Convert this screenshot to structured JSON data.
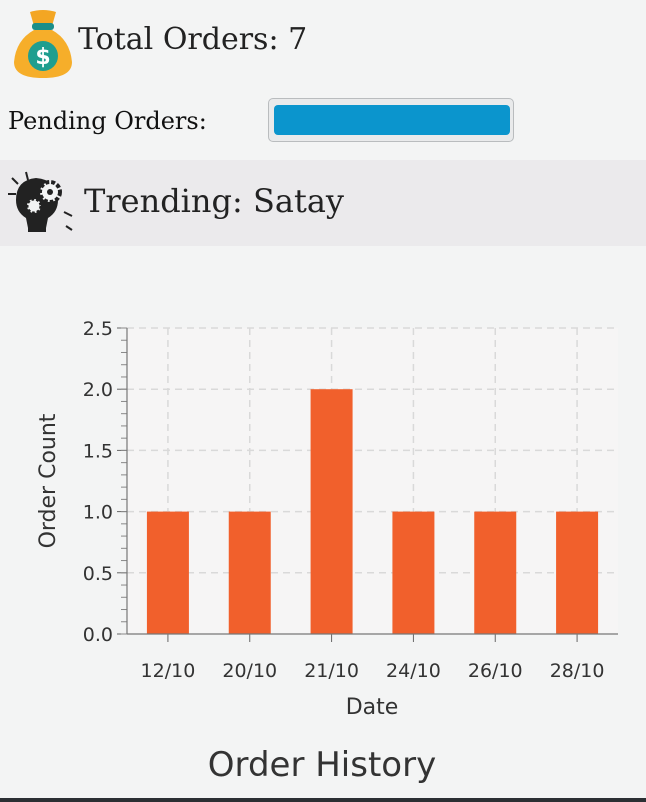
{
  "summary": {
    "total_orders_text": "Total Orders: 7",
    "pending_label": "Pending Orders:",
    "pending_progress": 1.0,
    "trending_text": "Trending: Satay"
  },
  "icons": {
    "total_orders": "money-bag-icon",
    "trending": "lightbulb-gears-icon"
  },
  "colors": {
    "bar": "#f1602c",
    "progress": "#0b95cd",
    "trend_band": "#ebeaec"
  },
  "chart_data": {
    "type": "bar",
    "title": "Order History",
    "xlabel": "Date",
    "ylabel": "Order Count",
    "categories": [
      "12/10",
      "20/10",
      "21/10",
      "24/10",
      "26/10",
      "28/10"
    ],
    "values": [
      1,
      1,
      2,
      1,
      1,
      1
    ],
    "ylim": [
      0,
      2.5
    ],
    "yticks": [
      "0.0",
      "0.5",
      "1.0",
      "1.5",
      "2.0",
      "2.5"
    ],
    "grid": true,
    "legend": "none"
  }
}
